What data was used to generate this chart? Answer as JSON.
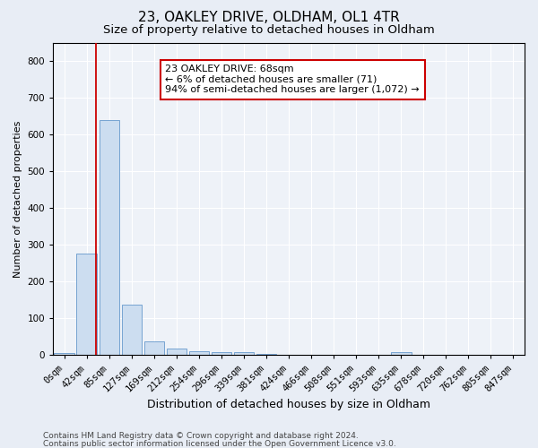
{
  "title1": "23, OAKLEY DRIVE, OLDHAM, OL1 4TR",
  "title2": "Size of property relative to detached houses in Oldham",
  "xlabel": "Distribution of detached houses by size in Oldham",
  "ylabel": "Number of detached properties",
  "footer1": "Contains HM Land Registry data © Crown copyright and database right 2024.",
  "footer2": "Contains public sector information licensed under the Open Government Licence v3.0.",
  "bar_labels": [
    "0sqm",
    "42sqm",
    "85sqm",
    "127sqm",
    "169sqm",
    "212sqm",
    "254sqm",
    "296sqm",
    "339sqm",
    "381sqm",
    "424sqm",
    "466sqm",
    "508sqm",
    "551sqm",
    "593sqm",
    "635sqm",
    "678sqm",
    "720sqm",
    "762sqm",
    "805sqm",
    "847sqm"
  ],
  "bar_values": [
    5,
    275,
    640,
    137,
    38,
    17,
    11,
    8,
    8,
    3,
    0,
    0,
    0,
    0,
    0,
    7,
    0,
    0,
    0,
    0,
    0
  ],
  "bar_color": "#ccddf0",
  "bar_edge_color": "#6699cc",
  "vline_x": 1.42,
  "vline_color": "#cc0000",
  "annotation_text": "23 OAKLEY DRIVE: 68sqm\n← 6% of detached houses are smaller (71)\n94% of semi-detached houses are larger (1,072) →",
  "annotation_box_color": "#cc0000",
  "annotation_text_color": "#000000",
  "ylim": [
    0,
    850
  ],
  "yticks": [
    0,
    100,
    200,
    300,
    400,
    500,
    600,
    700,
    800
  ],
  "background_color": "#e8edf5",
  "plot_bg_color": "#eef2f8",
  "grid_color": "#ffffff",
  "title1_fontsize": 11,
  "title2_fontsize": 9.5,
  "xlabel_fontsize": 9,
  "ylabel_fontsize": 8,
  "tick_fontsize": 7.5,
  "footer_fontsize": 6.5,
  "annotation_fontsize": 8
}
